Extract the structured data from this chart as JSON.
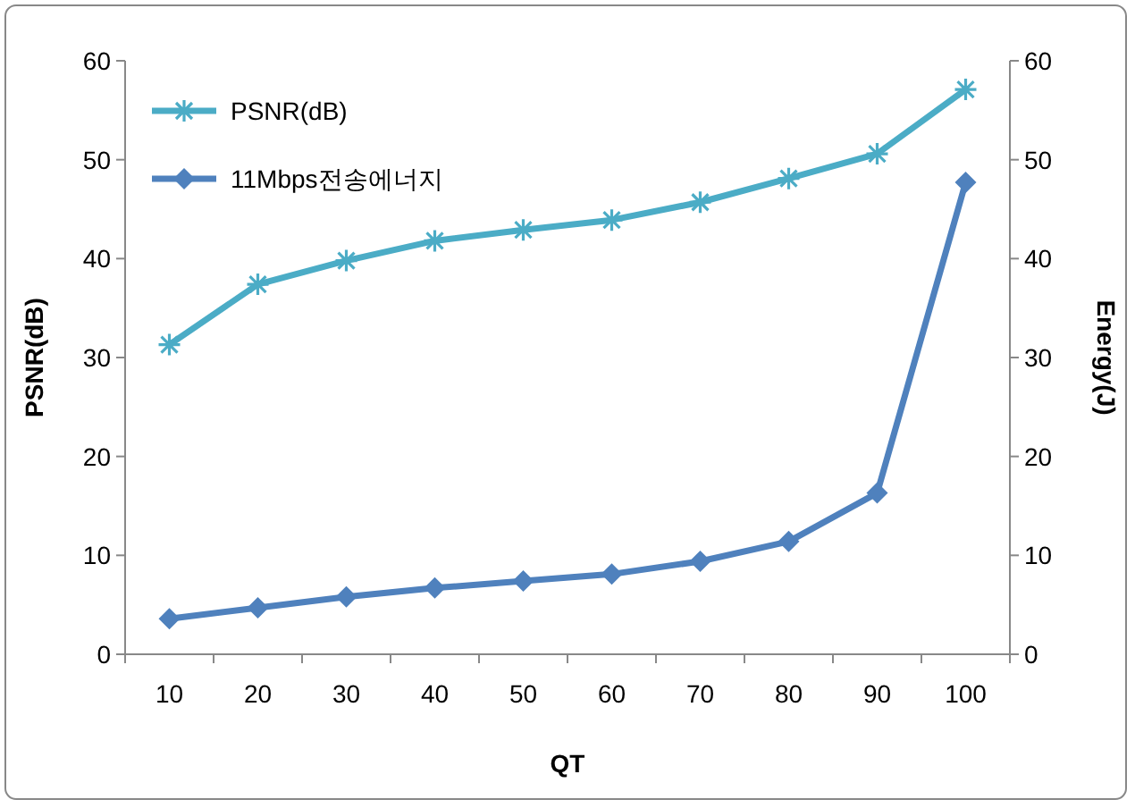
{
  "chart_data": {
    "type": "line",
    "xlabel": "QT",
    "ylabel": "PSNR(dB)",
    "y2label": "Energy(J)",
    "categories": [
      "10",
      "20",
      "30",
      "40",
      "50",
      "60",
      "70",
      "80",
      "90",
      "100"
    ],
    "ylim": [
      0,
      60
    ],
    "yticks": [
      0,
      10,
      20,
      30,
      40,
      50,
      60
    ],
    "y2lim": [
      0,
      60
    ],
    "y2ticks": [
      0,
      10,
      20,
      30,
      40,
      50,
      60
    ],
    "grid": false,
    "legend": "top left",
    "series": [
      {
        "name": "PSNR(dB)",
        "color": "#4bacc6",
        "marker": "cross",
        "values": [
          31.3,
          37.4,
          39.8,
          41.8,
          42.9,
          43.9,
          45.7,
          48.1,
          50.6,
          57.1
        ]
      },
      {
        "name": "11Mbps전송에너지",
        "color": "#4f81bd",
        "marker": "diamond",
        "values": [
          3.6,
          4.7,
          5.8,
          6.7,
          7.4,
          8.1,
          9.4,
          11.4,
          16.3,
          47.7
        ]
      }
    ]
  }
}
